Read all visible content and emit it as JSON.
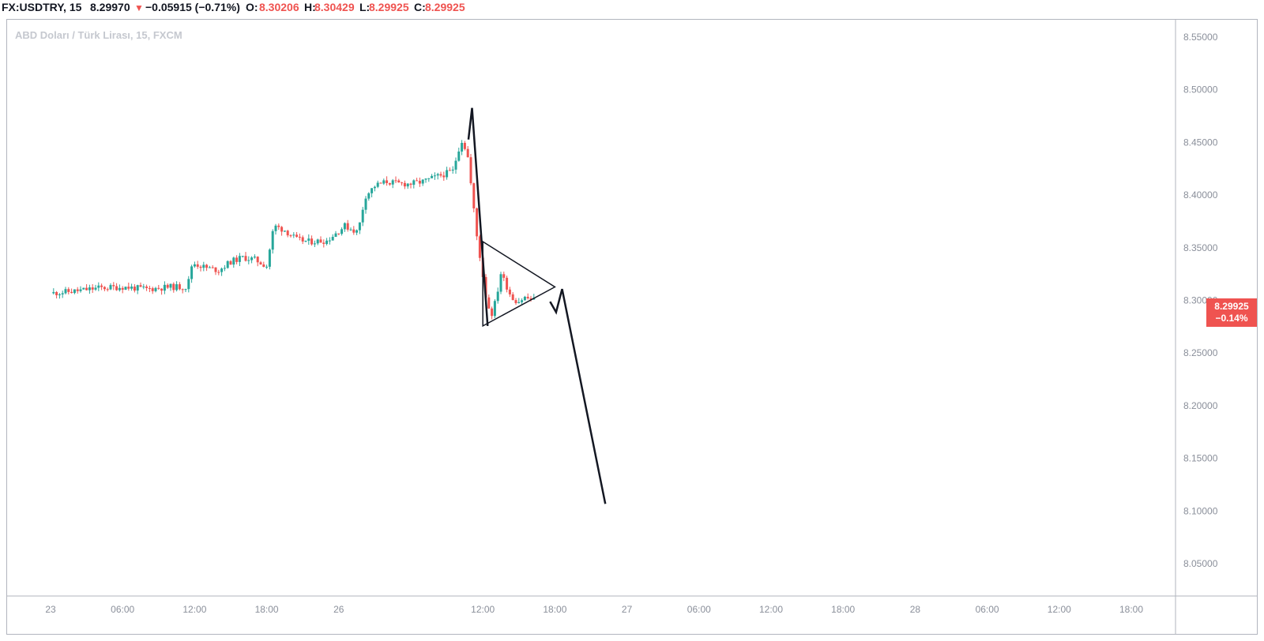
{
  "header": {
    "symbol": "FX:USDTRY, 15",
    "last": "8.29970",
    "direction_icon": "▼",
    "change": "−0.05915 (−0.71%)",
    "open_label": "O:",
    "open": "8.30206",
    "high_label": "H:",
    "high": "8.30429",
    "low_label": "L:",
    "low": "8.29925",
    "close_label": "C:",
    "close": "8.29925"
  },
  "watermark": "ABD Doları / Türk Lirası, 15, FXCM",
  "price_badge": {
    "price": "8.29925",
    "change": "−0.14%"
  },
  "colors": {
    "up": "#26a69a",
    "down": "#ef5350",
    "axis_text": "#8a8f9a",
    "drawing": "#131722"
  },
  "chart_data": {
    "type": "candlestick",
    "ylim": [
      8.02,
      8.56
    ],
    "y_ticks": [
      "8.55000",
      "8.50000",
      "8.45000",
      "8.40000",
      "8.35000",
      "8.30000",
      "8.25000",
      "8.20000",
      "8.15000",
      "8.10000",
      "8.05000"
    ],
    "x_ticks": [
      "23",
      "06:00",
      "12:00",
      "18:00",
      "26",
      "12:00",
      "18:00",
      "27",
      "06:00",
      "12:00",
      "18:00",
      "28",
      "06:00",
      "12:00",
      "18:00"
    ],
    "x_tick_hours": [
      0,
      6,
      12,
      18,
      24,
      36,
      42,
      48,
      54,
      60,
      66,
      72,
      78,
      84,
      90
    ],
    "price_path": [
      [
        0,
        8.306
      ],
      [
        2,
        8.308
      ],
      [
        4,
        8.311
      ],
      [
        6,
        8.312
      ],
      [
        8,
        8.31
      ],
      [
        10,
        8.312
      ],
      [
        11.4,
        8.312
      ],
      [
        11.8,
        8.335
      ],
      [
        13,
        8.33
      ],
      [
        14,
        8.328
      ],
      [
        15,
        8.336
      ],
      [
        16,
        8.34
      ],
      [
        17,
        8.338
      ],
      [
        18,
        8.332
      ],
      [
        18.6,
        8.37
      ],
      [
        19.5,
        8.366
      ],
      [
        20.5,
        8.357
      ],
      [
        21.5,
        8.355
      ],
      [
        23,
        8.356
      ],
      [
        24.5,
        8.37
      ],
      [
        25.6,
        8.364
      ],
      [
        26.2,
        8.398
      ],
      [
        27,
        8.408
      ],
      [
        28,
        8.412
      ],
      [
        29,
        8.41
      ],
      [
        30,
        8.41
      ],
      [
        31,
        8.412
      ],
      [
        32,
        8.416
      ],
      [
        33.5,
        8.422
      ],
      [
        34.2,
        8.452
      ],
      [
        34.7,
        8.44
      ],
      [
        35.1,
        8.4
      ],
      [
        35.5,
        8.36
      ],
      [
        35.9,
        8.33
      ],
      [
        36.3,
        8.3
      ],
      [
        36.7,
        8.285
      ],
      [
        37.1,
        8.3
      ],
      [
        37.5,
        8.325
      ],
      [
        37.9,
        8.315
      ],
      [
        38.4,
        8.302
      ],
      [
        38.9,
        8.298
      ],
      [
        39.5,
        8.302
      ],
      [
        40.1,
        8.3
      ],
      [
        40.4,
        8.299
      ]
    ],
    "drawings": {
      "impulse_leg": [
        [
          34.8,
          8.452
        ],
        [
          35.1,
          8.482
        ],
        [
          36.4,
          8.275
        ]
      ],
      "triangle": [
        [
          36.0,
          8.275
        ],
        [
          36.0,
          8.355
        ],
        [
          42.0,
          8.312
        ]
      ],
      "projection": [
        [
          41.6,
          8.298
        ],
        [
          42.1,
          8.288
        ],
        [
          42.6,
          8.31
        ],
        [
          46.2,
          8.106
        ]
      ]
    }
  }
}
